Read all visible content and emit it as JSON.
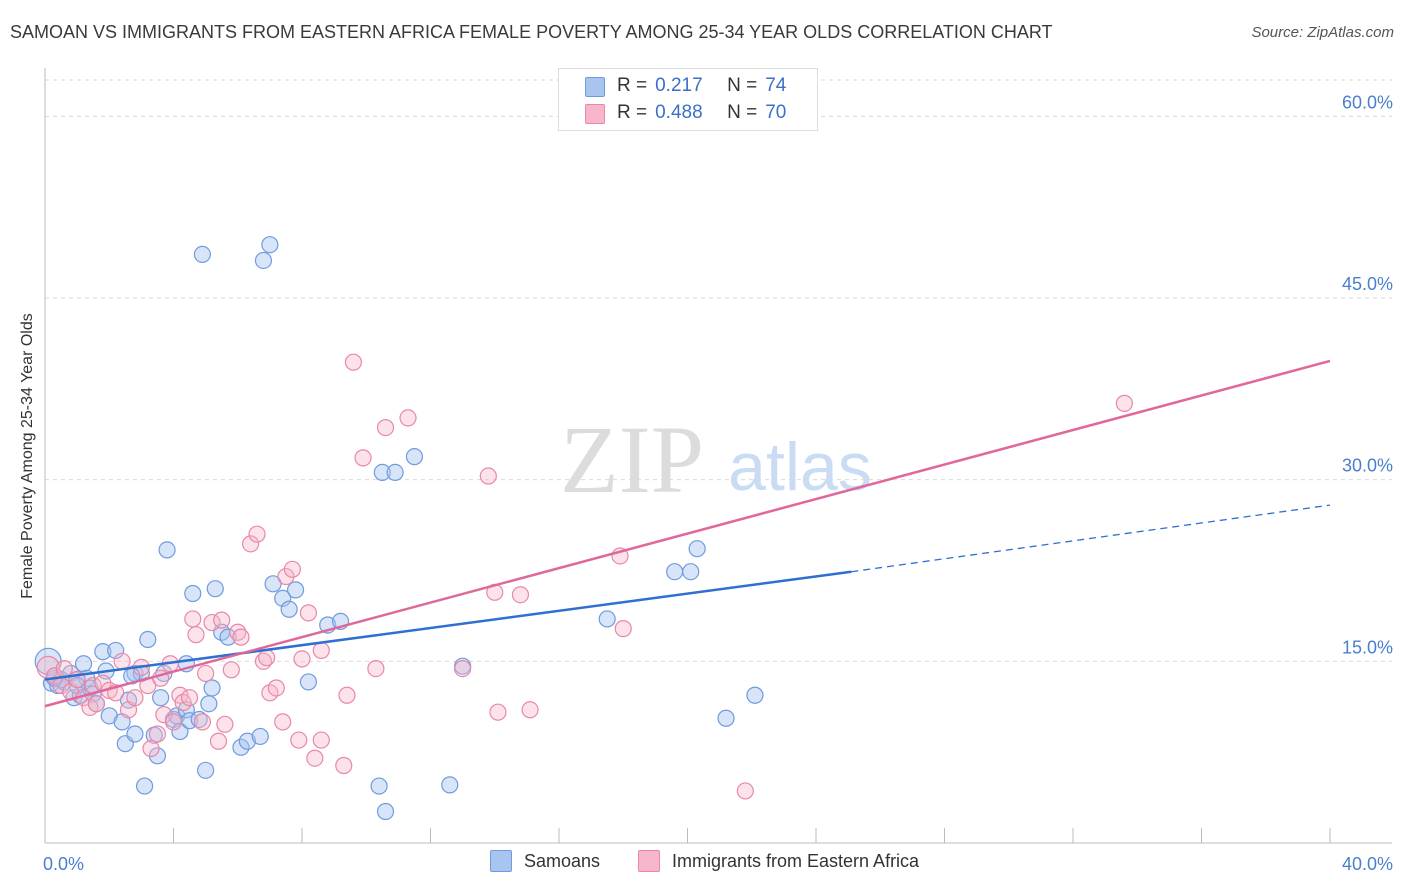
{
  "title": "SAMOAN VS IMMIGRANTS FROM EASTERN AFRICA FEMALE POVERTY AMONG 25-34 YEAR OLDS CORRELATION CHART",
  "source": "Source: ZipAtlas.com",
  "watermark": {
    "zip": "ZIP",
    "atlas": "atlas"
  },
  "legend_top": [
    {
      "r_label": "R =",
      "r_value": "0.217",
      "n_label": "N =",
      "n_value": "74"
    },
    {
      "r_label": "R =",
      "r_value": "0.488",
      "n_label": "N =",
      "n_value": "70"
    }
  ],
  "colors": {
    "samoans_fill": "#a9c4ee",
    "samoans_stroke": "#6f9be0",
    "samoans_line": "#2e6fd0",
    "eafrica_fill": "#f7b6cb",
    "eafrica_stroke": "#e888a8",
    "eafrica_line": "#e0679a",
    "axis_value": "#4a7fcf",
    "grid": "#d9d9d9"
  },
  "chart_data": {
    "type": "scatter",
    "title": "SAMOAN VS IMMIGRANTS FROM EASTERN AFRICA FEMALE POVERTY AMONG 25-34 YEAR OLDS CORRELATION CHART",
    "xlabel": "",
    "ylabel": "Female Poverty Among 25-34 Year Olds",
    "xlim": [
      0,
      40
    ],
    "ylim": [
      0,
      63
    ],
    "x_tick_labels": [
      "0.0%",
      "40.0%"
    ],
    "y_ticks": [
      15,
      30,
      45,
      60
    ],
    "y_tick_labels": [
      "15.0%",
      "30.0%",
      "45.0%",
      "60.0%"
    ],
    "grid": true,
    "legend_position": "top-center",
    "series": [
      {
        "name": "Samoans",
        "r": 0.217,
        "n": 74,
        "trend": {
          "x0": 0,
          "y0": 13.5,
          "x1": 25.1,
          "y1": 22.4,
          "dashed_to_x": 40,
          "dashed_to_y": 27.9
        },
        "points": [
          [
            0.1,
            15.0
          ],
          [
            0.2,
            13.2
          ],
          [
            0.4,
            13.0
          ],
          [
            0.5,
            13.5
          ],
          [
            0.6,
            13.3
          ],
          [
            0.8,
            14.0
          ],
          [
            0.9,
            12.0
          ],
          [
            1.0,
            13.5
          ],
          [
            1.1,
            12.2
          ],
          [
            1.2,
            14.8
          ],
          [
            1.3,
            13.6
          ],
          [
            1.4,
            12.8
          ],
          [
            1.5,
            12.3
          ],
          [
            1.6,
            11.5
          ],
          [
            1.8,
            15.8
          ],
          [
            1.9,
            14.2
          ],
          [
            2.0,
            10.5
          ],
          [
            2.2,
            15.9
          ],
          [
            2.4,
            10.0
          ],
          [
            2.5,
            8.2
          ],
          [
            2.6,
            11.8
          ],
          [
            2.8,
            14.0
          ],
          [
            2.8,
            9.0
          ],
          [
            3.0,
            14.0
          ],
          [
            3.1,
            4.7
          ],
          [
            3.2,
            16.8
          ],
          [
            3.4,
            8.9
          ],
          [
            3.5,
            7.2
          ],
          [
            3.6,
            12.0
          ],
          [
            3.7,
            14.0
          ],
          [
            3.8,
            24.2
          ],
          [
            4.0,
            10.2
          ],
          [
            4.1,
            10.5
          ],
          [
            4.2,
            9.2
          ],
          [
            4.4,
            11.0
          ],
          [
            4.4,
            14.8
          ],
          [
            4.5,
            10.1
          ],
          [
            4.6,
            20.6
          ],
          [
            4.8,
            10.2
          ],
          [
            4.9,
            48.6
          ],
          [
            5.0,
            6.0
          ],
          [
            5.1,
            11.5
          ],
          [
            5.2,
            12.8
          ],
          [
            5.3,
            21.0
          ],
          [
            5.5,
            17.4
          ],
          [
            5.7,
            17.0
          ],
          [
            6.1,
            7.9
          ],
          [
            6.3,
            8.4
          ],
          [
            6.7,
            8.8
          ],
          [
            6.8,
            48.1
          ],
          [
            7.0,
            49.4
          ],
          [
            7.1,
            21.4
          ],
          [
            7.4,
            20.2
          ],
          [
            7.6,
            19.3
          ],
          [
            7.8,
            20.9
          ],
          [
            8.2,
            13.3
          ],
          [
            8.8,
            18.0
          ],
          [
            9.2,
            18.3
          ],
          [
            10.4,
            4.7
          ],
          [
            10.5,
            30.6
          ],
          [
            10.6,
            2.6
          ],
          [
            10.9,
            30.6
          ],
          [
            11.5,
            31.9
          ],
          [
            12.6,
            4.8
          ],
          [
            13.0,
            14.6
          ],
          [
            17.5,
            18.5
          ],
          [
            19.6,
            22.4
          ],
          [
            20.1,
            22.4
          ],
          [
            20.3,
            24.3
          ],
          [
            21.2,
            10.3
          ],
          [
            22.1,
            12.2
          ],
          [
            1.0,
            13.0
          ],
          [
            0.3,
            13.6
          ],
          [
            2.7,
            13.8
          ]
        ]
      },
      {
        "name": "Immigrants from Eastern Africa",
        "r": 0.488,
        "n": 70,
        "trend": {
          "x0": 0,
          "y0": 11.3,
          "x1": 40,
          "y1": 39.8
        },
        "points": [
          [
            0.1,
            14.5
          ],
          [
            0.3,
            13.8
          ],
          [
            0.5,
            13.0
          ],
          [
            0.6,
            14.4
          ],
          [
            0.8,
            12.5
          ],
          [
            1.0,
            13.5
          ],
          [
            1.2,
            12.0
          ],
          [
            1.4,
            11.2
          ],
          [
            1.5,
            13.0
          ],
          [
            1.6,
            11.5
          ],
          [
            1.8,
            13.2
          ],
          [
            2.0,
            12.6
          ],
          [
            2.2,
            12.4
          ],
          [
            2.4,
            15.0
          ],
          [
            2.6,
            11.0
          ],
          [
            2.8,
            12.0
          ],
          [
            3.0,
            14.5
          ],
          [
            3.2,
            13.0
          ],
          [
            3.3,
            7.8
          ],
          [
            3.5,
            9.0
          ],
          [
            3.6,
            13.6
          ],
          [
            3.7,
            10.6
          ],
          [
            3.9,
            14.8
          ],
          [
            4.0,
            10.0
          ],
          [
            4.2,
            12.2
          ],
          [
            4.3,
            11.6
          ],
          [
            4.5,
            12.0
          ],
          [
            4.6,
            18.5
          ],
          [
            4.7,
            17.2
          ],
          [
            4.9,
            10.0
          ],
          [
            5.0,
            14.0
          ],
          [
            5.2,
            18.2
          ],
          [
            5.4,
            8.4
          ],
          [
            5.5,
            18.4
          ],
          [
            5.6,
            9.8
          ],
          [
            5.8,
            14.3
          ],
          [
            6.0,
            17.4
          ],
          [
            6.1,
            17.0
          ],
          [
            6.4,
            24.7
          ],
          [
            6.6,
            25.5
          ],
          [
            6.8,
            15.0
          ],
          [
            6.9,
            15.3
          ],
          [
            7.0,
            12.4
          ],
          [
            7.2,
            12.8
          ],
          [
            7.4,
            10.0
          ],
          [
            7.5,
            22.0
          ],
          [
            7.7,
            22.6
          ],
          [
            7.9,
            8.5
          ],
          [
            8.0,
            15.2
          ],
          [
            8.2,
            19.0
          ],
          [
            8.4,
            7.0
          ],
          [
            8.6,
            8.5
          ],
          [
            8.6,
            15.9
          ],
          [
            9.3,
            6.4
          ],
          [
            9.4,
            12.2
          ],
          [
            9.6,
            39.7
          ],
          [
            9.9,
            31.8
          ],
          [
            10.3,
            14.4
          ],
          [
            10.6,
            34.3
          ],
          [
            11.3,
            35.1
          ],
          [
            13.0,
            14.4
          ],
          [
            13.8,
            30.3
          ],
          [
            14.0,
            20.7
          ],
          [
            14.1,
            10.8
          ],
          [
            14.8,
            20.5
          ],
          [
            15.1,
            11.0
          ],
          [
            17.9,
            23.7
          ],
          [
            18.0,
            17.7
          ],
          [
            21.8,
            4.3
          ],
          [
            33.6,
            36.3
          ]
        ]
      }
    ]
  },
  "bottom_legend": [
    {
      "label": "Samoans"
    },
    {
      "label": "Immigrants from Eastern Africa"
    }
  ]
}
